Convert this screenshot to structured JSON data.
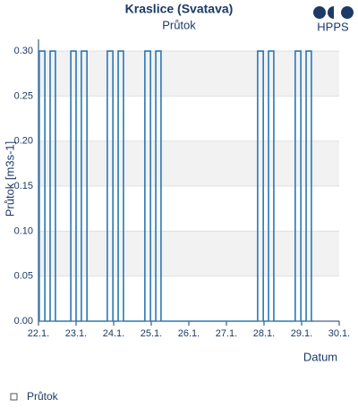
{
  "chart_data": {
    "type": "line",
    "title": "Kraslice (Svatava)",
    "subtitle": "Průtok",
    "logo": "HPPS",
    "x_label": "Datum",
    "y_label": "Průtok [m3s-1]",
    "x": [
      22,
      22.02,
      22.02,
      22.17,
      22.17,
      22.31,
      22.31,
      22.45,
      22.45,
      22.86,
      22.86,
      23.0,
      23.0,
      23.14,
      23.14,
      23.29,
      23.29,
      23.83,
      23.83,
      23.98,
      23.98,
      24.12,
      24.12,
      24.26,
      24.26,
      24.83,
      24.83,
      24.98,
      24.98,
      25.12,
      25.12,
      25.26,
      25.26,
      27.83,
      27.83,
      27.98,
      27.98,
      28.12,
      28.12,
      28.26,
      28.26,
      28.83,
      28.83,
      28.98,
      28.98,
      29.12,
      29.12,
      29.26,
      29.26,
      29.33
    ],
    "series": [
      {
        "name": "Průtok",
        "color": "#2a78b5",
        "values": [
          0,
          0,
          0.3,
          0.3,
          0,
          0,
          0.3,
          0.3,
          0,
          0,
          0.3,
          0.3,
          0,
          0,
          0.3,
          0.3,
          0,
          0,
          0.3,
          0.3,
          0,
          0,
          0.3,
          0.3,
          0,
          0,
          0.3,
          0.3,
          0,
          0,
          0.3,
          0.3,
          0,
          0,
          0.3,
          0.3,
          0,
          0,
          0.3,
          0.3,
          0,
          0,
          0.3,
          0.3,
          0,
          0,
          0.3,
          0.3,
          0,
          0
        ]
      }
    ],
    "xlim": [
      22,
      30
    ],
    "xticks": [
      {
        "value": 22,
        "label": "22.1."
      },
      {
        "value": 23,
        "label": "23.1."
      },
      {
        "value": 24,
        "label": "24.1."
      },
      {
        "value": 25,
        "label": "25.1."
      },
      {
        "value": 26,
        "label": "26.1."
      },
      {
        "value": 27,
        "label": "27.1."
      },
      {
        "value": 28,
        "label": "28.1."
      },
      {
        "value": 29,
        "label": "29.1."
      },
      {
        "value": 30,
        "label": "30.1."
      }
    ],
    "ylim": [
      0,
      0.313
    ],
    "yticks": [
      {
        "value": 0,
        "label": "0.00"
      },
      {
        "value": 0.05,
        "label": "0.05"
      },
      {
        "value": 0.1,
        "label": "0.10"
      },
      {
        "value": 0.15,
        "label": "0.15"
      },
      {
        "value": 0.2,
        "label": "0.20"
      },
      {
        "value": 0.25,
        "label": "0.25"
      },
      {
        "value": 0.3,
        "label": "0.30"
      }
    ],
    "grid": true,
    "bands": true
  }
}
